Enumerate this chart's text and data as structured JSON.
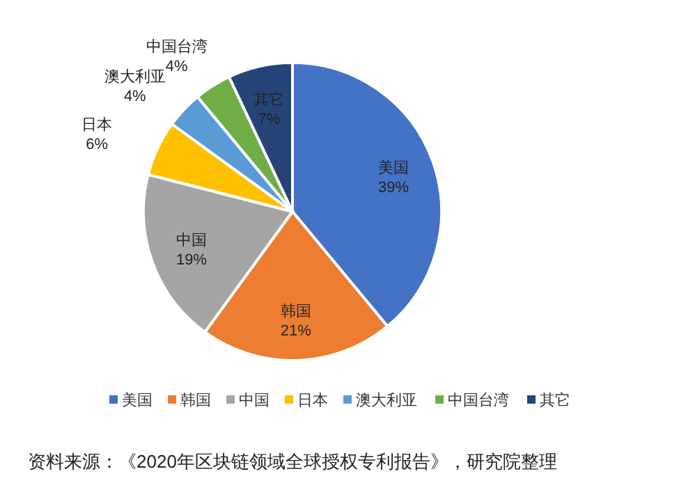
{
  "chart_data": {
    "type": "pie",
    "categories": [
      "美国",
      "韩国",
      "中国",
      "日本",
      "澳大利亚",
      "中国台湾",
      "其它"
    ],
    "values": [
      39,
      21,
      19,
      6,
      4,
      4,
      7
    ],
    "colors": [
      "#4472c4",
      "#ed7d31",
      "#a5a5a5",
      "#ffc000",
      "#5b9bd5",
      "#70ad47",
      "#264478"
    ],
    "value_labels": [
      "39%",
      "21%",
      "19%",
      "6%",
      "4%",
      "4%",
      "7%"
    ],
    "legend": "bottom",
    "annotations": [
      "资料来源：《2020年区块链领域全球授权专利报告》，研究院整理"
    ]
  }
}
